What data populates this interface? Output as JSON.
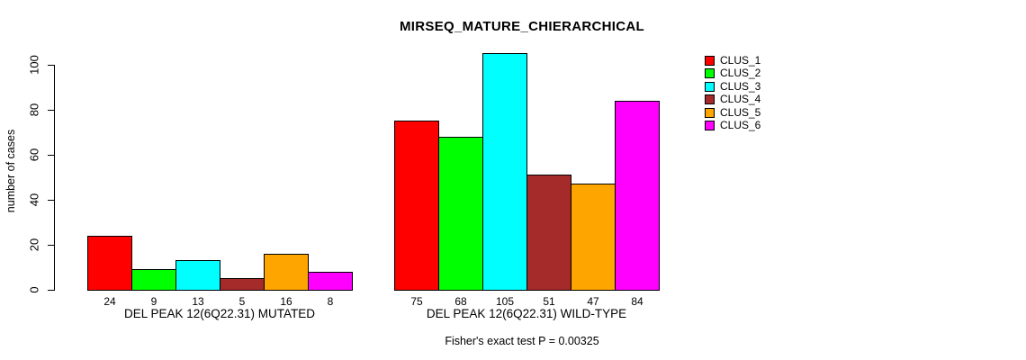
{
  "chart_data": {
    "type": "bar",
    "title": "MIRSEQ_MATURE_CHIERARCHICAL",
    "ylabel": "number of cases",
    "xlabel": "",
    "annotation": "Fisher's exact test P = 0.00325",
    "categories": [
      "DEL PEAK 12(6Q22.31) MUTATED",
      "DEL PEAK 12(6Q22.31) WILD-TYPE"
    ],
    "series": [
      {
        "name": "CLUS_1",
        "color": "#FF0000",
        "values": [
          24,
          75
        ]
      },
      {
        "name": "CLUS_2",
        "color": "#00FF00",
        "values": [
          9,
          68
        ]
      },
      {
        "name": "CLUS_3",
        "color": "#00FFFF",
        "values": [
          13,
          105
        ]
      },
      {
        "name": "CLUS_4",
        "color": "#A52A2A",
        "values": [
          5,
          51
        ]
      },
      {
        "name": "CLUS_5",
        "color": "#FFA500",
        "values": [
          16,
          47
        ]
      },
      {
        "name": "CLUS_6",
        "color": "#FF00FF",
        "values": [
          8,
          84
        ]
      }
    ],
    "bar_value_labels": [
      [
        24,
        9,
        13,
        5,
        16,
        8
      ],
      [
        75,
        68,
        105,
        51,
        47,
        84
      ]
    ],
    "yticks": [
      0,
      20,
      40,
      60,
      80,
      100
    ],
    "ylim": [
      0,
      105
    ],
    "grid": false,
    "legend_position": "top-right",
    "legend_entries": [
      "CLUS_1",
      "CLUS_2",
      "CLUS_3",
      "CLUS_4",
      "CLUS_5",
      "CLUS_6"
    ],
    "background_color": "#FFFFFF",
    "axis_color": "#000000"
  }
}
